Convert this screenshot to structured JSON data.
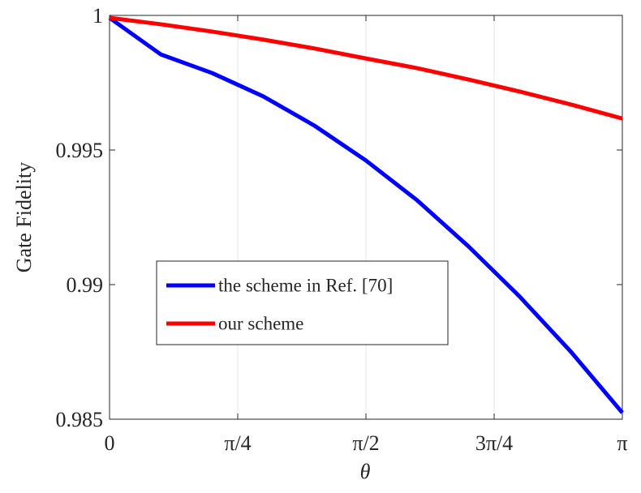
{
  "chart_data": {
    "type": "line",
    "x_label": "θ",
    "y_label": "Gate Fidelity",
    "x": [
      0,
      0.314159,
      0.628319,
      0.942478,
      1.256637,
      1.570796,
      1.884956,
      2.199115,
      2.513274,
      2.827433,
      3.141593
    ],
    "series": [
      {
        "name": "the scheme in Ref. [70]",
        "color": "#0000ff",
        "values": [
          0.99991,
          0.99855,
          0.99786,
          0.99699,
          0.9959,
          0.99461,
          0.99313,
          0.99142,
          0.98955,
          0.9875,
          0.98524
        ]
      },
      {
        "name": "our scheme",
        "color": "#ff0000",
        "values": [
          0.99991,
          0.99967,
          0.9994,
          0.9991,
          0.99877,
          0.9984,
          0.99804,
          0.99762,
          0.99717,
          0.99669,
          0.99617
        ]
      }
    ],
    "xlim": [
      0,
      3.141593
    ],
    "xticks": [
      0,
      {
        "value": 0.785398,
        "label": "π/4"
      },
      {
        "value": 1.570796,
        "label": "π/2"
      },
      {
        "value": 2.356194,
        "label": "3π/4"
      },
      {
        "value": 3.141593,
        "label": "π"
      }
    ],
    "ylim": [
      0.985,
      1
    ],
    "yticks": [
      0.985,
      0.99,
      0.995,
      1
    ],
    "grid": "x",
    "legend": "lower left"
  }
}
